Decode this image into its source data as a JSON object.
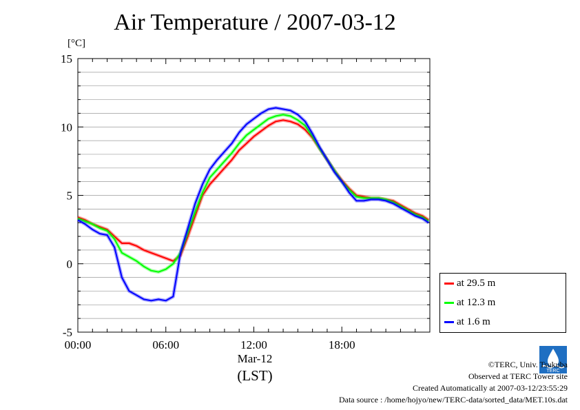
{
  "title": "Air Temperature / 2007-03-12",
  "unit": "[°C]",
  "x_sub_label": "Mar-12",
  "x_label": "(LST)",
  "footer": {
    "copyright": "©TERC, Univ. Tsukuba",
    "site": "Observed at TERC Tower site",
    "created": "Created Automatically at 2007-03-12/23:55:29",
    "source": "Data source : /home/hojyo/new/TERC-data/sorted_data/MET.10s.dat"
  },
  "logo_text": "TERC",
  "chart_data": {
    "type": "line",
    "title": "Air Temperature / 2007-03-12",
    "xlabel": "(LST)",
    "ylabel": "[°C]",
    "xlim": [
      "00:00",
      "24:00"
    ],
    "ylim": [
      -5,
      15
    ],
    "x_ticks": [
      "00:00",
      "06:00",
      "12:00",
      "18:00"
    ],
    "y_ticks": [
      "-5",
      "0",
      "5",
      "10",
      "15"
    ],
    "grid": "horizontal",
    "legend_position": "right",
    "x": [
      "00:00",
      "00:30",
      "01:00",
      "01:30",
      "02:00",
      "02:30",
      "03:00",
      "03:30",
      "04:00",
      "04:30",
      "05:00",
      "05:30",
      "06:00",
      "06:30",
      "07:00",
      "07:30",
      "08:00",
      "08:30",
      "09:00",
      "09:30",
      "10:00",
      "10:30",
      "11:00",
      "11:30",
      "12:00",
      "12:30",
      "13:00",
      "13:30",
      "14:00",
      "14:30",
      "15:00",
      "15:30",
      "16:00",
      "16:30",
      "17:00",
      "17:30",
      "18:00",
      "18:30",
      "19:00",
      "19:30",
      "20:00",
      "20:30",
      "21:00",
      "21:30",
      "22:00",
      "22:30",
      "23:00",
      "23:30",
      "23:55"
    ],
    "series": [
      {
        "name": "at 29.5 m",
        "color": "#ff0000",
        "values": [
          3.4,
          3.2,
          2.9,
          2.7,
          2.5,
          2.0,
          1.5,
          1.5,
          1.3,
          1.0,
          0.8,
          0.6,
          0.4,
          0.2,
          0.6,
          2.0,
          3.5,
          5.0,
          5.8,
          6.4,
          7.0,
          7.6,
          8.3,
          8.8,
          9.3,
          9.7,
          10.1,
          10.4,
          10.5,
          10.4,
          10.2,
          9.8,
          9.2,
          8.4,
          7.6,
          6.8,
          6.1,
          5.5,
          5.0,
          4.9,
          4.8,
          4.8,
          4.7,
          4.6,
          4.3,
          4.0,
          3.7,
          3.5,
          3.2
        ]
      },
      {
        "name": "at 12.3 m",
        "color": "#00ff00",
        "values": [
          3.3,
          3.1,
          2.9,
          2.6,
          2.4,
          1.8,
          0.8,
          0.5,
          0.2,
          -0.2,
          -0.5,
          -0.6,
          -0.4,
          0.0,
          0.8,
          2.3,
          3.8,
          5.2,
          6.3,
          6.9,
          7.5,
          8.1,
          8.8,
          9.4,
          9.8,
          10.2,
          10.6,
          10.8,
          10.9,
          10.8,
          10.5,
          10.1,
          9.3,
          8.4,
          7.6,
          6.8,
          6.0,
          5.4,
          4.9,
          4.8,
          4.8,
          4.8,
          4.7,
          4.5,
          4.2,
          3.9,
          3.6,
          3.4,
          3.1
        ]
      },
      {
        "name": "at 1.6 m",
        "color": "#0000ff",
        "values": [
          3.2,
          2.9,
          2.5,
          2.2,
          2.1,
          1.2,
          -1.0,
          -2.0,
          -2.3,
          -2.6,
          -2.7,
          -2.6,
          -2.7,
          -2.4,
          0.8,
          2.6,
          4.4,
          5.8,
          6.9,
          7.6,
          8.2,
          8.8,
          9.6,
          10.2,
          10.6,
          11.0,
          11.3,
          11.4,
          11.3,
          11.2,
          10.9,
          10.4,
          9.5,
          8.5,
          7.6,
          6.7,
          6.0,
          5.2,
          4.6,
          4.6,
          4.7,
          4.7,
          4.6,
          4.4,
          4.1,
          3.8,
          3.5,
          3.3,
          3.0
        ]
      }
    ]
  }
}
